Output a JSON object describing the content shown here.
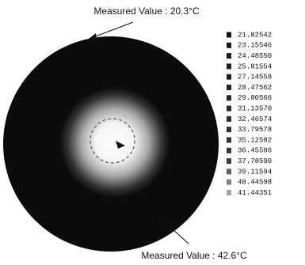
{
  "annotations": {
    "top": "Measured Value : 20.3°C",
    "bottom": "Measured Value : 42.6°C"
  },
  "legend": {
    "labels": [
      "21.82542",
      "23.15546",
      "24.48550",
      "25.81554",
      "27.14558",
      "28.47562",
      "29.80566",
      "31.13570",
      "32.46574",
      "33.79578",
      "35.12582",
      "36.45586",
      "37.78590",
      "39.11594",
      "40.44598",
      "41.44351"
    ]
  }
}
